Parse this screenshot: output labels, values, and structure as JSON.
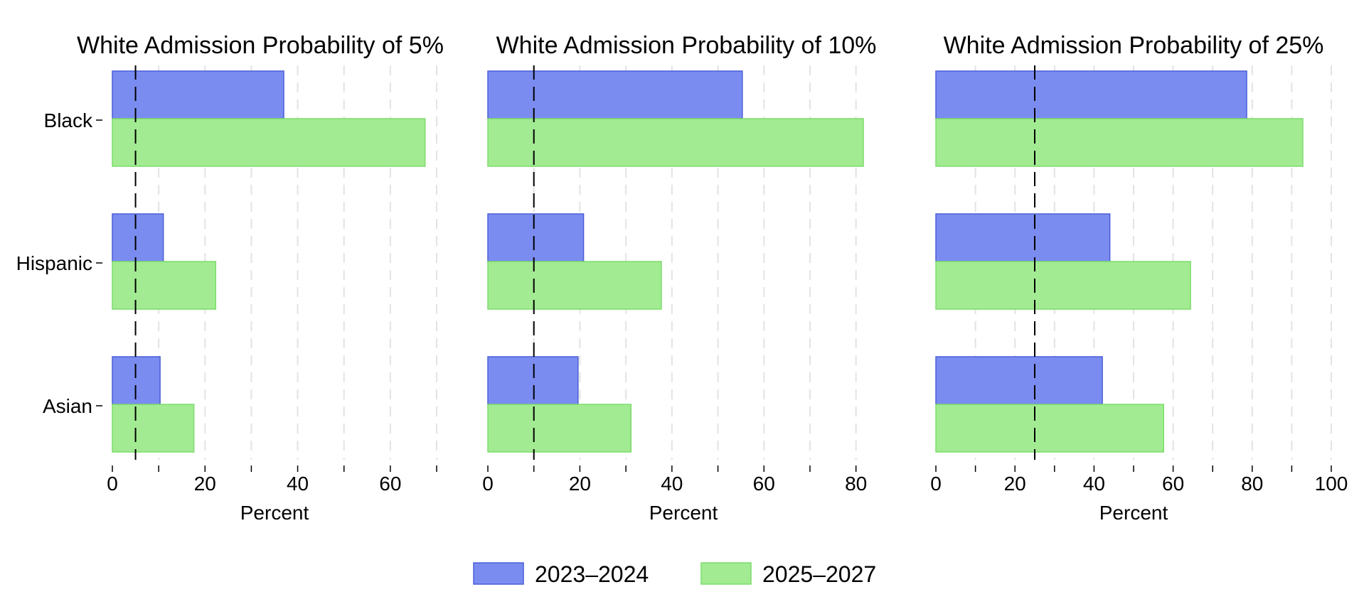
{
  "chart_data": [
    {
      "type": "bar",
      "orientation": "horizontal",
      "title": "White Admission Probability of 5%",
      "categories": [
        "Black",
        "Hispanic",
        "Asian"
      ],
      "series": [
        {
          "name": "2023–2024",
          "values": [
            37,
            11,
            10.3
          ]
        },
        {
          "name": "2025–2027",
          "values": [
            67.5,
            22.3,
            17.6
          ]
        }
      ],
      "xlabel": "Percent",
      "xlim": [
        0,
        70
      ],
      "xticks": [
        0,
        20,
        40,
        60
      ],
      "minor_xticks": [
        10,
        30,
        50,
        70
      ],
      "reference_line": 5,
      "grid": true
    },
    {
      "type": "bar",
      "orientation": "horizontal",
      "title": "White Admission Probability of 10%",
      "categories": [
        "Black",
        "Hispanic",
        "Asian"
      ],
      "series": [
        {
          "name": "2023–2024",
          "values": [
            55.3,
            20.8,
            19.6
          ]
        },
        {
          "name": "2025–2027",
          "values": [
            81.6,
            37.7,
            31.1
          ]
        }
      ],
      "xlabel": "Percent",
      "xlim": [
        0,
        85
      ],
      "xticks": [
        0,
        20,
        40,
        60,
        80
      ],
      "minor_xticks": [
        10,
        30,
        50,
        70
      ],
      "reference_line": 10,
      "grid": true
    },
    {
      "type": "bar",
      "orientation": "horizontal",
      "title": "White Admission Probability of 25%",
      "categories": [
        "Black",
        "Hispanic",
        "Asian"
      ],
      "series": [
        {
          "name": "2023–2024",
          "values": [
            78.6,
            44,
            42.1
          ]
        },
        {
          "name": "2025–2027",
          "values": [
            92.8,
            64.4,
            57.6
          ]
        }
      ],
      "xlabel": "Percent",
      "xlim": [
        0,
        100
      ],
      "xticks": [
        0,
        20,
        40,
        60,
        80,
        100
      ],
      "minor_xticks": [
        10,
        30,
        50,
        70,
        90
      ],
      "reference_line": 25,
      "grid": true
    }
  ],
  "legend": {
    "position": "bottom-center",
    "items": [
      {
        "label": "2023–2024",
        "color": "#7b8cf0"
      },
      {
        "label": "2025–2027",
        "color": "#a2eb92"
      }
    ]
  },
  "colors": {
    "series_1_fill": "#7b8cf0",
    "series_1_edge": "#4a5ed8",
    "series_2_fill": "#a2eb92",
    "series_2_edge": "#7ddc6c",
    "reference_line": "#000000",
    "grid": "#e3e3e3"
  }
}
